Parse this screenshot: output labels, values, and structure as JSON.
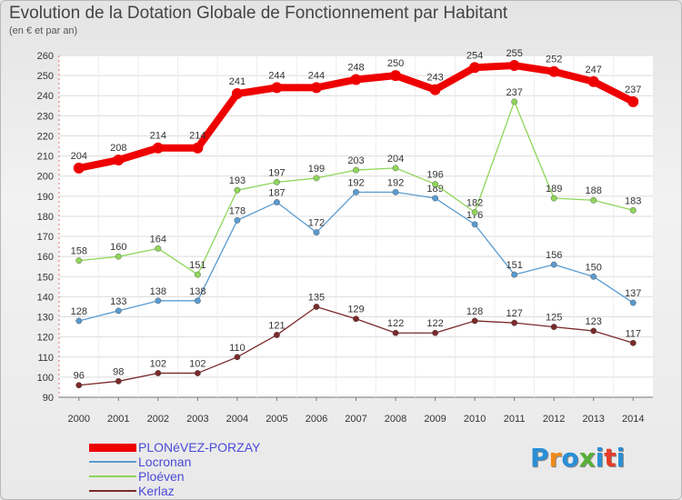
{
  "title": "Evolution de la Dotation Globale de Fonctionnement par Habitant",
  "subtitle": "(en € et par an)",
  "logo": {
    "text": "Proxiti",
    "colors": [
      "#2a8fd6",
      "#f08a1c",
      "#2a8fd6",
      "#58b038",
      "#2a8fd6",
      "#e63c28",
      "#2a8fd6"
    ]
  },
  "chart_data": {
    "type": "line",
    "title": "Evolution de la Dotation Globale de Fonctionnement par Habitant",
    "subtitle": "(en € et par an)",
    "xlabel": "",
    "ylabel": "",
    "x": [
      "2000",
      "2001",
      "2002",
      "2003",
      "2004",
      "2005",
      "2006",
      "2007",
      "2008",
      "2009",
      "2010",
      "2011",
      "2012",
      "2013",
      "2014"
    ],
    "ylim": [
      90,
      260
    ],
    "yticks": [
      90,
      100,
      110,
      120,
      130,
      140,
      150,
      160,
      170,
      180,
      190,
      200,
      210,
      220,
      230,
      240,
      250,
      260
    ],
    "grid": true,
    "legend_position": "bottom-left",
    "series": [
      {
        "name": "PLONéVEZ-PORZAY",
        "color": "#ee0000",
        "width": 8,
        "values": [
          204,
          208,
          214,
          214,
          241,
          244,
          244,
          248,
          250,
          243,
          254,
          255,
          252,
          247,
          237
        ]
      },
      {
        "name": "Locronan",
        "color": "#5a9bd0",
        "width": 1.3,
        "values": [
          128,
          133,
          138,
          138,
          178,
          187,
          172,
          192,
          192,
          189,
          176,
          151,
          156,
          150,
          137
        ]
      },
      {
        "name": "Ploéven",
        "color": "#8fd65a",
        "width": 1.3,
        "values": [
          158,
          160,
          164,
          151,
          193,
          197,
          199,
          203,
          204,
          196,
          182,
          237,
          189,
          188,
          183
        ]
      },
      {
        "name": "Kerlaz",
        "color": "#7a2a2a",
        "width": 1.3,
        "values": [
          96,
          98,
          102,
          102,
          110,
          121,
          135,
          129,
          122,
          122,
          128,
          127,
          125,
          123,
          117
        ]
      }
    ]
  }
}
